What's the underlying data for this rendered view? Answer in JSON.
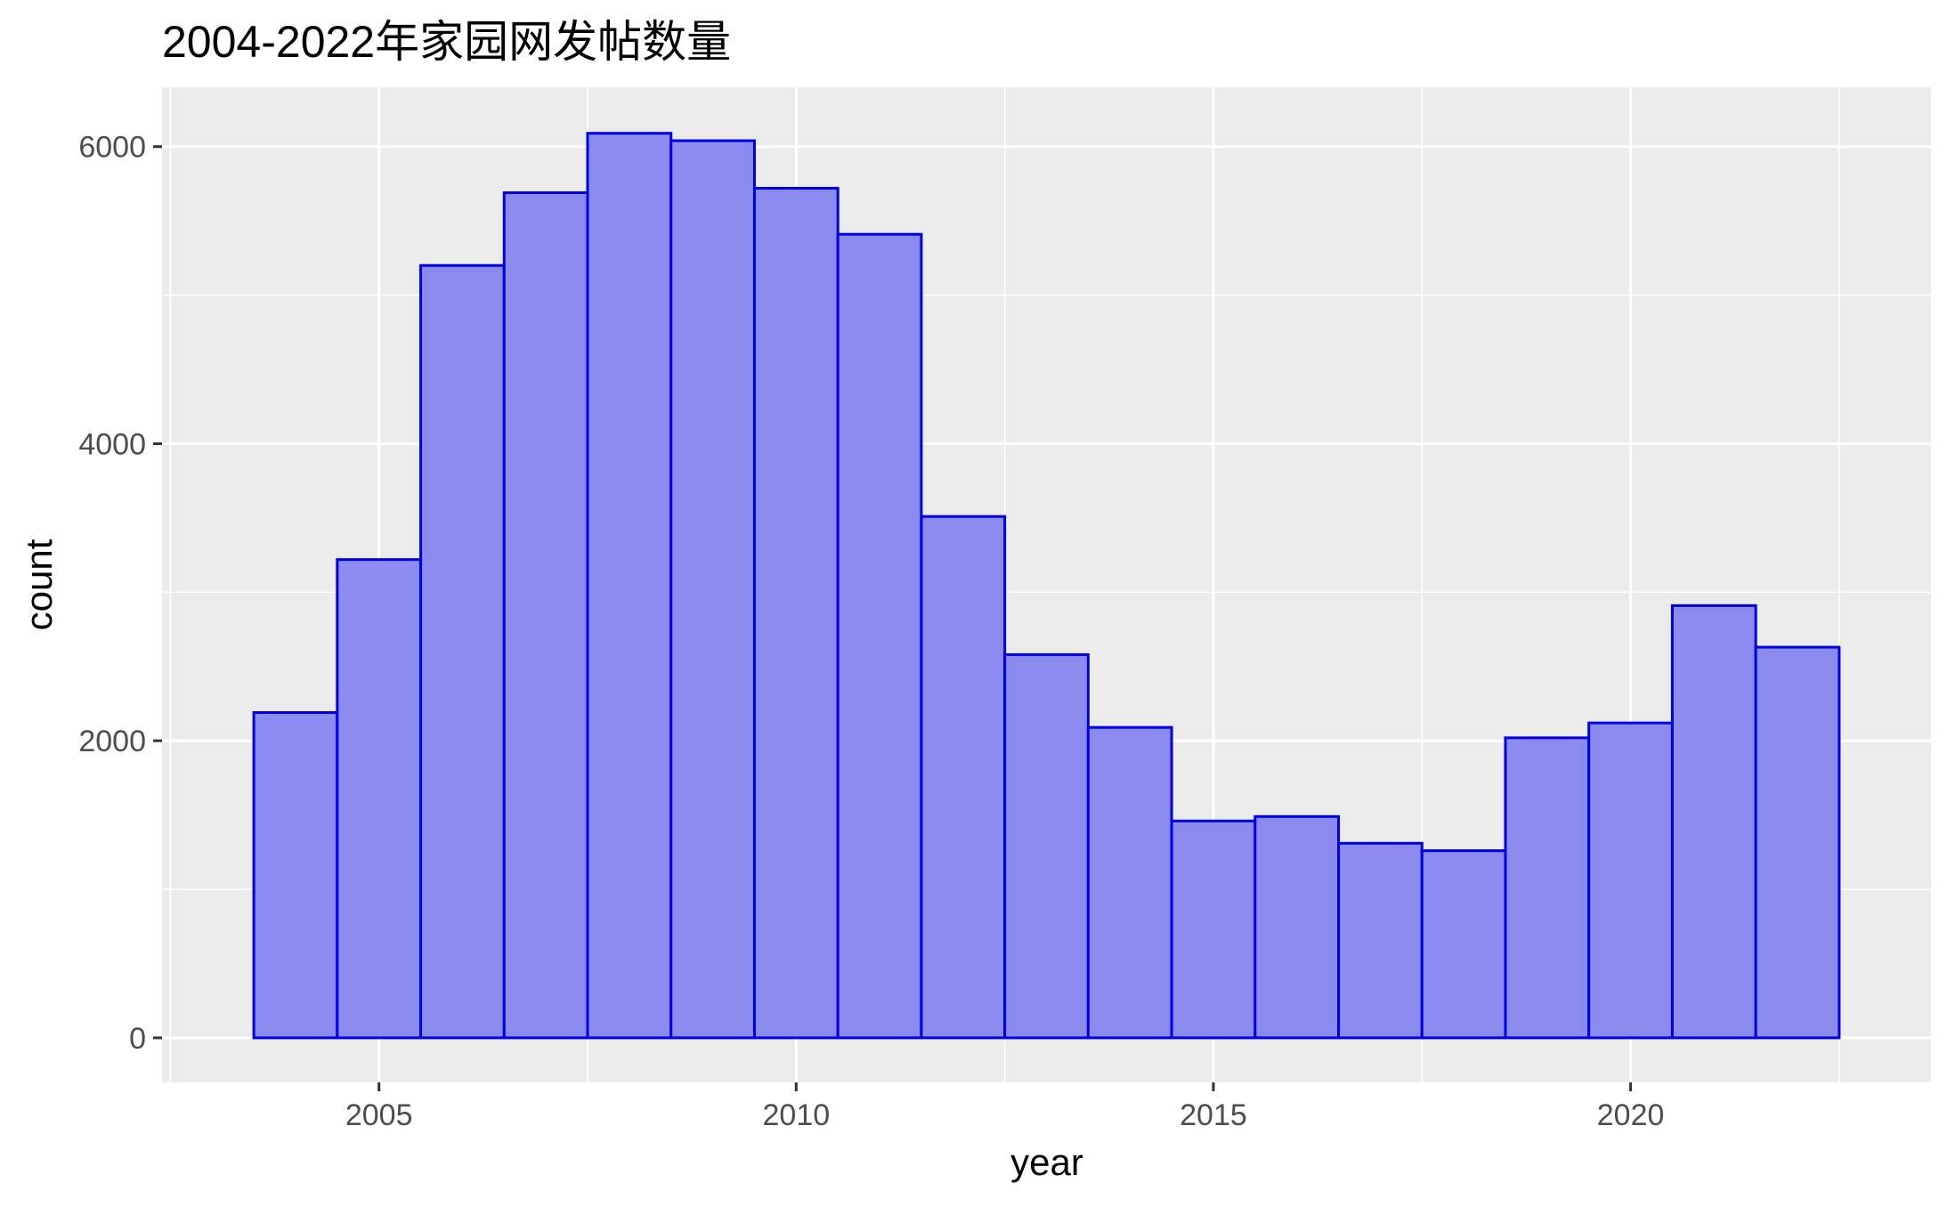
{
  "chart_data": {
    "type": "bar",
    "title": "2004-2022年家园网发帖数量",
    "xlabel": "year",
    "ylabel": "count",
    "categories": [
      "2004",
      "2005",
      "2006",
      "2007",
      "2008",
      "2009",
      "2010",
      "2011",
      "2012",
      "2013",
      "2014",
      "2015",
      "2016",
      "2017",
      "2018",
      "2019",
      "2020",
      "2021",
      "2022"
    ],
    "values": [
      2190,
      3220,
      5200,
      5690,
      6090,
      6040,
      5720,
      5410,
      3510,
      2580,
      2090,
      1460,
      1490,
      1310,
      1260,
      2020,
      2120,
      2910,
      2630
    ],
    "xlim": [
      2002.4,
      2023.6
    ],
    "ylim": [
      -300,
      6400
    ],
    "x_ticks": [
      2005,
      2010,
      2015,
      2020
    ],
    "x_tick_labels": [
      "2005",
      "2010",
      "2015",
      "2020"
    ],
    "y_ticks": [
      0,
      2000,
      4000,
      6000
    ],
    "y_tick_labels": [
      "0",
      "2000",
      "4000",
      "6000"
    ],
    "bar_fill": "#8a8aef",
    "bar_outline": "#0000e6",
    "panel_background": "#ebebeb",
    "grid": true,
    "legend": "none"
  }
}
